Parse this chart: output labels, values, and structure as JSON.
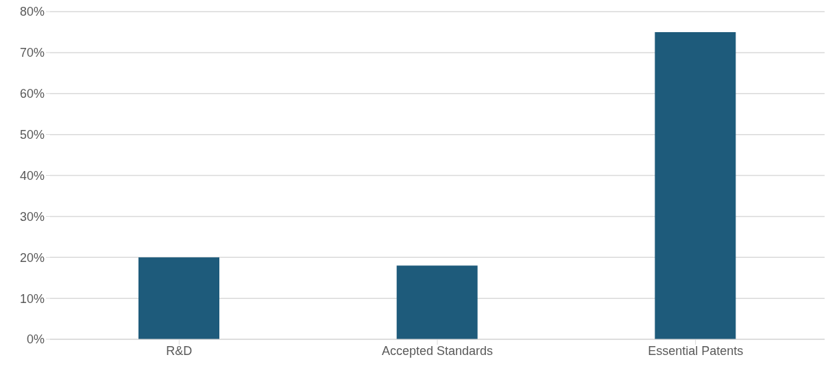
{
  "chart_data": {
    "type": "bar",
    "categories": [
      "R&D",
      "Accepted Standards",
      "Essential Patents"
    ],
    "values": [
      20,
      18,
      75
    ],
    "color": "#1e5b7b",
    "ylim": [
      0,
      80
    ],
    "yticks": [
      {
        "value": 0,
        "label": "0%"
      },
      {
        "value": 10,
        "label": "10%"
      },
      {
        "value": 20,
        "label": "20%"
      },
      {
        "value": 30,
        "label": "30%"
      },
      {
        "value": 40,
        "label": "40%"
      },
      {
        "value": 50,
        "label": "50%"
      },
      {
        "value": 60,
        "label": "60%"
      },
      {
        "value": 70,
        "label": "70%"
      },
      {
        "value": 80,
        "label": "80%"
      }
    ],
    "grid": "y"
  }
}
